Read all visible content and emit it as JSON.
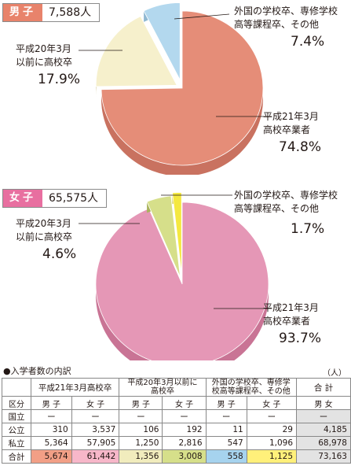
{
  "male": {
    "label": "男子",
    "total": "7,588人",
    "slices": [
      {
        "name": "平成21年3月\n高校卒業者",
        "pct": "74.8%",
        "value": 74.8,
        "color": "#e58d78",
        "side": "#c97260"
      },
      {
        "name": "平成20年3月\n以前に高校卒",
        "pct": "17.9%",
        "value": 17.9,
        "color": "#f6f0cc",
        "side": "#d8d0a4"
      },
      {
        "name": "外国の学校卒、専修学校\n高等課程卒、その他",
        "pct": "7.4%",
        "value": 7.4,
        "color": "#b3d8ee",
        "side": "#8fb8d2"
      }
    ]
  },
  "female": {
    "label": "女子",
    "total": "65,575人",
    "slices": [
      {
        "name": "平成21年3月\n高校卒業者",
        "pct": "93.7%",
        "value": 93.7,
        "color": "#e597b6",
        "side": "#c97495"
      },
      {
        "name": "平成20年3月\n以前に高校卒",
        "pct": "4.6%",
        "value": 4.6,
        "color": "#d6df8a",
        "side": "#a9b35c"
      },
      {
        "name": "外国の学校卒、専修学校\n高等課程卒、その他",
        "pct": "1.7%",
        "value": 1.7,
        "color": "#f4e840",
        "side": "#c8bd1c"
      }
    ]
  },
  "table": {
    "title": "●入学者数の内訳",
    "unit": "（人）",
    "group_headers": [
      "平成21年3月高校卒",
      "平成20年3月以前に\n高校卒",
      "外国の学校卒、専修学\n校高等課程卒、その他",
      "合 計"
    ],
    "kubun": "区分",
    "sub_headers": [
      "男 子",
      "女 子",
      "男 子",
      "女 子",
      "男 子",
      "女 子",
      "男 女"
    ],
    "rows": [
      {
        "label": "国立",
        "cells": [
          "ー",
          "ー",
          "ー",
          "ー",
          "ー",
          "ー",
          "ー"
        ]
      },
      {
        "label": "公立",
        "cells": [
          "310",
          "3,537",
          "106",
          "192",
          "11",
          "29",
          "4,185"
        ]
      },
      {
        "label": "私立",
        "cells": [
          "5,364",
          "57,905",
          "1,250",
          "2,816",
          "547",
          "1,096",
          "68,978"
        ]
      },
      {
        "label": "合計",
        "cells": [
          "5,674",
          "61,442",
          "1,356",
          "3,008",
          "558",
          "1,125",
          "73,163"
        ]
      }
    ]
  },
  "chart_data": [
    {
      "type": "pie",
      "title": "男子 7,588人",
      "categories": [
        "平成21年3月高校卒業者",
        "平成20年3月以前に高校卒",
        "外国の学校卒、専修学校高等課程卒、その他"
      ],
      "values": [
        74.8,
        17.9,
        7.4
      ]
    },
    {
      "type": "pie",
      "title": "女子 65,575人",
      "categories": [
        "平成21年3月高校卒業者",
        "平成20年3月以前に高校卒",
        "外国の学校卒、専修学校高等課程卒、その他"
      ],
      "values": [
        93.7,
        4.6,
        1.7
      ]
    }
  ]
}
